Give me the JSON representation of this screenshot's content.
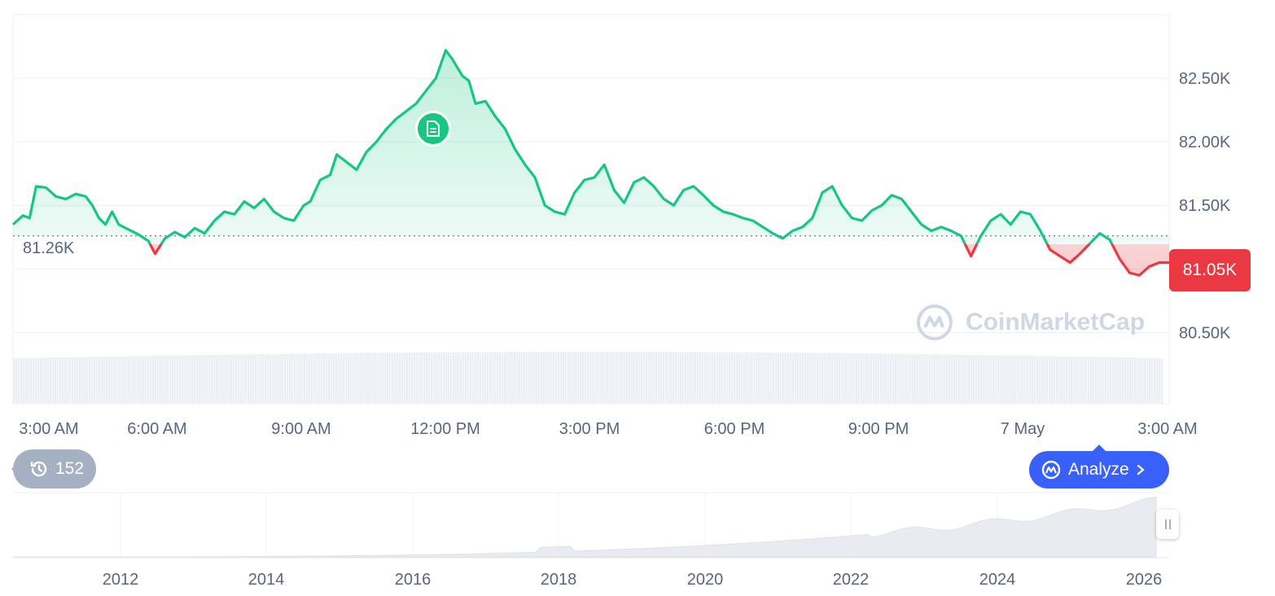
{
  "chart_data": {
    "type": "line",
    "reference_value": 81.26,
    "reference_label": "81.26K",
    "current_label": "81.05K",
    "y_ticks": [
      "82.50K",
      "82.00K",
      "81.50K",
      "80.50K"
    ],
    "x_ticks": [
      "3:00 AM",
      "6:00 AM",
      "9:00 AM",
      "12:00 PM",
      "3:00 PM",
      "6:00 PM",
      "9:00 PM",
      "7 May",
      "3:00 AM"
    ],
    "y_unit": "K",
    "y_range": [
      80.4,
      83.0
    ],
    "x_range_hours": [
      0,
      24
    ],
    "series": [
      {
        "values": [
          [
            0,
            81.35
          ],
          [
            0.3,
            81.42
          ],
          [
            0.5,
            81.4
          ],
          [
            0.7,
            81.65
          ],
          [
            1.0,
            81.64
          ],
          [
            1.3,
            81.57
          ],
          [
            1.6,
            81.55
          ],
          [
            1.9,
            81.59
          ],
          [
            2.2,
            81.57
          ],
          [
            2.4,
            81.5
          ],
          [
            2.6,
            81.4
          ],
          [
            2.8,
            81.35
          ],
          [
            3.0,
            81.45
          ],
          [
            3.2,
            81.35
          ],
          [
            3.5,
            81.31
          ],
          [
            3.8,
            81.27
          ],
          [
            4.1,
            81.22
          ],
          [
            4.3,
            81.12
          ],
          [
            4.6,
            81.24
          ],
          [
            4.9,
            81.29
          ],
          [
            5.2,
            81.25
          ],
          [
            5.5,
            81.32
          ],
          [
            5.8,
            81.28
          ],
          [
            6.1,
            81.38
          ],
          [
            6.4,
            81.45
          ],
          [
            6.7,
            81.43
          ],
          [
            7.0,
            81.53
          ],
          [
            7.3,
            81.48
          ],
          [
            7.6,
            81.55
          ],
          [
            7.9,
            81.45
          ],
          [
            8.2,
            81.4
          ],
          [
            8.5,
            81.38
          ],
          [
            8.8,
            81.5
          ],
          [
            9.0,
            81.53
          ],
          [
            9.3,
            81.7
          ],
          [
            9.6,
            81.74
          ],
          [
            9.8,
            81.9
          ],
          [
            10.1,
            81.84
          ],
          [
            10.4,
            81.78
          ],
          [
            10.7,
            81.92
          ],
          [
            11.0,
            82.0
          ],
          [
            11.3,
            82.1
          ],
          [
            11.6,
            82.18
          ],
          [
            11.9,
            82.24
          ],
          [
            12.2,
            82.3
          ],
          [
            12.5,
            82.4
          ],
          [
            12.8,
            82.5
          ],
          [
            13.1,
            82.72
          ],
          [
            13.3,
            82.65
          ],
          [
            13.6,
            82.52
          ],
          [
            13.8,
            82.48
          ],
          [
            14.0,
            82.3
          ],
          [
            14.3,
            82.32
          ],
          [
            14.6,
            82.2
          ],
          [
            14.9,
            82.1
          ],
          [
            15.2,
            81.94
          ],
          [
            15.5,
            81.82
          ],
          [
            15.8,
            81.72
          ],
          [
            16.1,
            81.5
          ],
          [
            16.4,
            81.45
          ],
          [
            16.7,
            81.43
          ],
          [
            17.0,
            81.6
          ],
          [
            17.3,
            81.7
          ],
          [
            17.6,
            81.72
          ],
          [
            17.9,
            81.82
          ],
          [
            18.2,
            81.62
          ],
          [
            18.5,
            81.52
          ],
          [
            18.8,
            81.68
          ],
          [
            19.1,
            81.72
          ],
          [
            19.4,
            81.65
          ],
          [
            19.7,
            81.55
          ],
          [
            20.0,
            81.5
          ],
          [
            20.3,
            81.62
          ],
          [
            20.6,
            81.65
          ],
          [
            20.9,
            81.58
          ],
          [
            21.2,
            81.5
          ],
          [
            21.5,
            81.45
          ],
          [
            21.8,
            81.43
          ],
          [
            22.1,
            81.4
          ],
          [
            22.4,
            81.38
          ],
          [
            22.7,
            81.33
          ],
          [
            23.0,
            81.28
          ],
          [
            23.3,
            81.24
          ]
        ]
      },
      {
        "values": [
          [
            23.6,
            81.3
          ],
          [
            23.9,
            81.33
          ],
          [
            24.2,
            81.4
          ],
          [
            24.5,
            81.6
          ],
          [
            24.8,
            81.65
          ],
          [
            25.1,
            81.5
          ],
          [
            25.4,
            81.4
          ],
          [
            25.7,
            81.38
          ],
          [
            26.0,
            81.46
          ],
          [
            26.3,
            81.5
          ],
          [
            26.6,
            81.58
          ],
          [
            26.9,
            81.55
          ],
          [
            27.2,
            81.45
          ],
          [
            27.5,
            81.35
          ],
          [
            27.8,
            81.3
          ],
          [
            28.1,
            81.33
          ],
          [
            28.4,
            81.3
          ],
          [
            28.7,
            81.26
          ],
          [
            29.0,
            81.1
          ],
          [
            29.3,
            81.26
          ],
          [
            29.6,
            81.38
          ],
          [
            29.9,
            81.43
          ],
          [
            30.2,
            81.35
          ],
          [
            30.5,
            81.45
          ],
          [
            30.8,
            81.43
          ],
          [
            31.1,
            81.3
          ],
          [
            31.4,
            81.15
          ],
          [
            31.7,
            81.1
          ],
          [
            32.0,
            81.05
          ],
          [
            32.3,
            81.12
          ],
          [
            32.6,
            81.2
          ],
          [
            32.9,
            81.28
          ],
          [
            33.2,
            81.23
          ],
          [
            33.5,
            81.08
          ],
          [
            33.8,
            80.97
          ],
          [
            34.1,
            80.95
          ],
          [
            34.4,
            81.02
          ],
          [
            34.7,
            81.05
          ],
          [
            35.0,
            81.05
          ]
        ]
      }
    ],
    "volume_bars": "uniform-light",
    "overview": {
      "x_ticks": [
        "2012",
        "2014",
        "2016",
        "2018",
        "2020",
        "2022",
        "2024",
        "2026"
      ]
    }
  },
  "ui": {
    "history_count": "152",
    "analyze_label": "Analyze",
    "watermark_text": "CoinMarketCap",
    "colors": {
      "up": "#16c784",
      "down": "#ea3943",
      "analyze": "#3861fb",
      "pill": "#a6b0c3"
    }
  }
}
